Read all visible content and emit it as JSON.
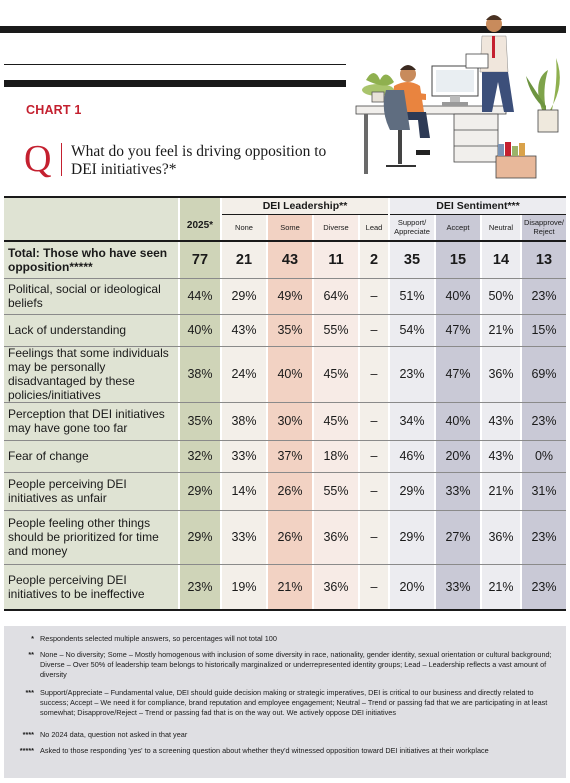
{
  "chart_label": "CHART 1",
  "question_mark": "Q",
  "question": "What do you feel is driving opposition to DEI initiatives?*",
  "columns": {
    "year": "2025*",
    "leadership_group": "DEI Leadership**",
    "sentiment_group": "DEI Sentiment***",
    "leadership": [
      "None",
      "Some",
      "Diverse",
      "Lead"
    ],
    "sentiment": [
      "Support/ Appreciate",
      "Accept",
      "Neutral",
      "Disapprove/ Reject"
    ]
  },
  "colors": {
    "year_col": "#cfd4b8",
    "leadership_none": "#f3efe9",
    "leadership_some": "#f2d2c3",
    "leadership_diverse": "#f7ebe6",
    "leadership_lead": "#f3efe9",
    "sentiment_support": "#ececf0",
    "sentiment_accept": "#c9c9d6",
    "sentiment_neutral": "#ececf0",
    "sentiment_reject": "#c9c9d6",
    "label_bg": "#dfe3d3",
    "accent": "#c4202f"
  },
  "rows": [
    {
      "label": "Total: Those who have seen opposition*****",
      "values": [
        "77",
        "21",
        "43",
        "11",
        "2",
        "35",
        "15",
        "14",
        "13"
      ],
      "bold": true
    },
    {
      "label": "Political, social or ideological beliefs",
      "values": [
        "44%",
        "29%",
        "49%",
        "64%",
        "–",
        "51%",
        "40%",
        "50%",
        "23%"
      ]
    },
    {
      "label": "Lack of understanding",
      "values": [
        "40%",
        "43%",
        "35%",
        "55%",
        "–",
        "54%",
        "47%",
        "21%",
        "15%"
      ]
    },
    {
      "label": "Feelings that some individuals may be personally disadvantaged by these policies/initiatives",
      "values": [
        "38%",
        "24%",
        "40%",
        "45%",
        "–",
        "23%",
        "47%",
        "36%",
        "69%"
      ]
    },
    {
      "label": "Perception that DEI initiatives may have gone too far",
      "values": [
        "35%",
        "38%",
        "30%",
        "45%",
        "–",
        "34%",
        "40%",
        "43%",
        "23%"
      ]
    },
    {
      "label": "Fear of change",
      "values": [
        "32%",
        "33%",
        "37%",
        "18%",
        "–",
        "46%",
        "20%",
        "43%",
        "0%"
      ]
    },
    {
      "label": "People perceiving DEI initiatives as unfair",
      "values": [
        "29%",
        "14%",
        "26%",
        "55%",
        "–",
        "29%",
        "33%",
        "21%",
        "31%"
      ]
    },
    {
      "label": "People feeling other things should be prioritized for time and money",
      "values": [
        "29%",
        "33%",
        "26%",
        "36%",
        "–",
        "29%",
        "27%",
        "36%",
        "23%"
      ]
    },
    {
      "label": "People perceiving DEI initiatives to be ineffective",
      "values": [
        "23%",
        "19%",
        "21%",
        "36%",
        "–",
        "20%",
        "33%",
        "21%",
        "23%"
      ]
    }
  ],
  "notes": [
    {
      "key": "*",
      "text": "Respondents selected multiple answers, so percentages will not total 100"
    },
    {
      "key": "**",
      "text": "None – No diversity; Some – Mostly homogenous with inclusion of some diversity in race, nationality, gender identity, sexual orientation or cultural background; Diverse – Over 50% of leadership team belongs to historically marginalized or underrepresented identity groups; Lead – Leadership reflects a vast amount of diversity"
    },
    {
      "key": "***",
      "text": "Support/Appreciate – Fundamental value, DEI should guide decision making or strategic imperatives, DEI is critical to our business and directly related to success; Accept – We need it for compliance, brand reputation and employee engagement; Neutral – Trend or passing fad that we are participating in at least somewhat; Disapprove/Reject – Trend or passing fad that is on the way out. We actively oppose DEI initiatives"
    },
    {
      "key": "****",
      "text": "No 2024 data, question not asked in that year"
    },
    {
      "key": "*****",
      "text": "Asked to those responding 'yes' to a screening question about whether they'd witnessed opposition toward DEI initiatives at their workplace"
    }
  ]
}
